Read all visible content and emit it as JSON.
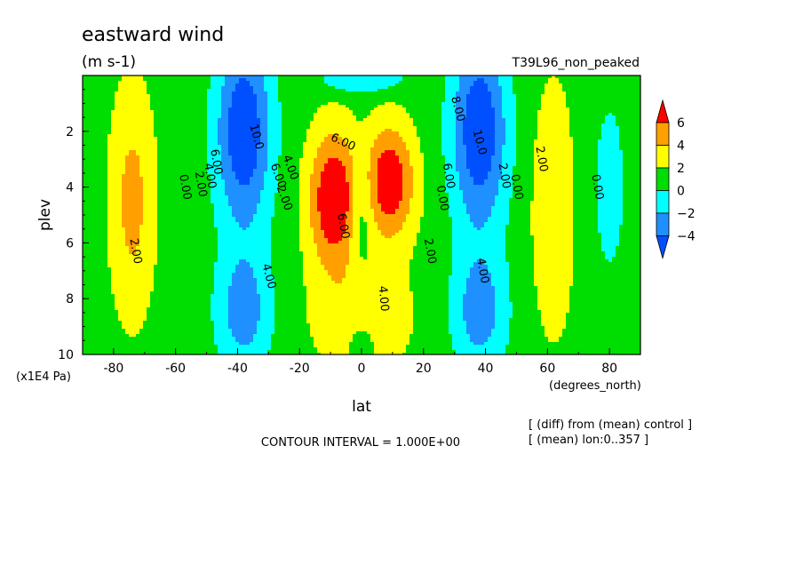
{
  "chart_data": {
    "type": "heatmap",
    "title": "eastward wind",
    "units": "(m s-1)",
    "run_label": "T39L96_non_peaked",
    "xlabel": "lat",
    "x_units": "(degrees_north)",
    "ylabel": "plev",
    "y_units": "(x1E4 Pa)",
    "xlim": [
      -90,
      90
    ],
    "ylim": [
      0,
      10
    ],
    "y_inverted": true,
    "x_ticks": [
      -80,
      -60,
      -40,
      -20,
      0,
      20,
      40,
      60,
      80
    ],
    "y_ticks": [
      2,
      4,
      6,
      8,
      10
    ],
    "contour_interval_text": "CONTOUR INTERVAL = 1.000E+00",
    "notes": [
      "[ (diff) from (mean) control ]",
      "[ (mean) lon:0..357 ]"
    ],
    "colorbar": {
      "labels": [
        "6",
        "4",
        "2",
        "0",
        "−2",
        "−4"
      ],
      "levels": [
        6,
        4,
        2,
        0,
        -2,
        -4
      ],
      "colors": [
        "#ff0000",
        "#ffa000",
        "#ffff00",
        "#00dd00",
        "#00ffff",
        "#1e90ff",
        "#0050ff"
      ]
    },
    "contour_labels": [
      {
        "text": "2.00",
        "lat": -73,
        "plev": 6.3,
        "rot": 80
      },
      {
        "text": "0.00",
        "lat": -57,
        "plev": 4.0,
        "rot": 80
      },
      {
        "text": "2.00",
        "lat": -52,
        "plev": 3.9,
        "rot": 80
      },
      {
        "text": "4.00",
        "lat": -49,
        "plev": 3.6,
        "rot": 80
      },
      {
        "text": "6.00",
        "lat": -47,
        "plev": 3.1,
        "rot": 80
      },
      {
        "text": "4.00",
        "lat": -30,
        "plev": 7.2,
        "rot": 75
      },
      {
        "text": "10.0",
        "lat": -34,
        "plev": 2.2,
        "rot": 75
      },
      {
        "text": "6.00",
        "lat": -27,
        "plev": 3.6,
        "rot": 70
      },
      {
        "text": "4.00",
        "lat": -23,
        "plev": 3.3,
        "rot": 70
      },
      {
        "text": "2.00",
        "lat": -25,
        "plev": 4.4,
        "rot": 70
      },
      {
        "text": "6.00",
        "lat": -6,
        "plev": 2.4,
        "rot": 25
      },
      {
        "text": "6.00",
        "lat": -6,
        "plev": 5.4,
        "rot": 80
      },
      {
        "text": "4.00",
        "lat": 7,
        "plev": 8.0,
        "rot": 85
      },
      {
        "text": "2.00",
        "lat": 22,
        "plev": 6.3,
        "rot": 80
      },
      {
        "text": "0.00",
        "lat": 26,
        "plev": 4.4,
        "rot": 80
      },
      {
        "text": "6.00",
        "lat": 28,
        "plev": 3.6,
        "rot": 80
      },
      {
        "text": "8.00",
        "lat": 31,
        "plev": 1.2,
        "rot": 75
      },
      {
        "text": "10.0",
        "lat": 38,
        "plev": 2.4,
        "rot": 75
      },
      {
        "text": "4.00",
        "lat": 39,
        "plev": 7.0,
        "rot": 80
      },
      {
        "text": "2.00",
        "lat": 46,
        "plev": 3.6,
        "rot": 80
      },
      {
        "text": "0.00",
        "lat": 50,
        "plev": 4.0,
        "rot": 80
      },
      {
        "text": "2.00",
        "lat": 58,
        "plev": 3.0,
        "rot": 80
      },
      {
        "text": "0.00",
        "lat": 76,
        "plev": 4.0,
        "rot": 80
      }
    ]
  }
}
